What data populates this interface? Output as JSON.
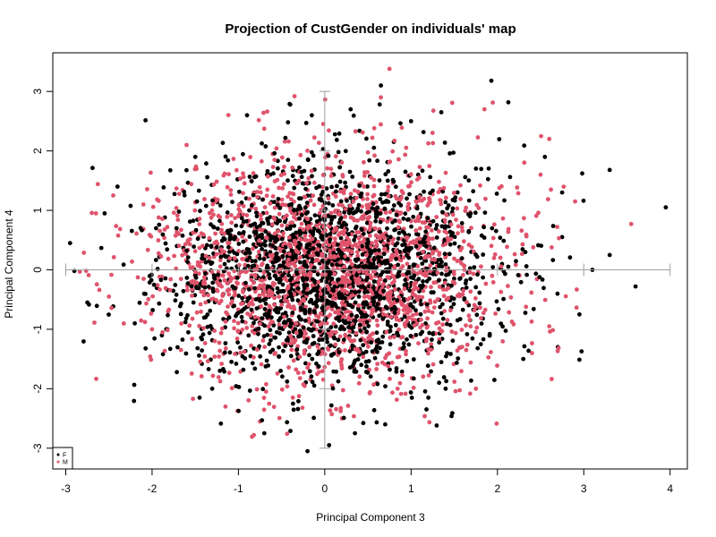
{
  "chart_data": {
    "type": "scatter",
    "title": "Projection of CustGender on individuals' map",
    "xlabel": "Principal Component 3",
    "ylabel": "Principal Component 4",
    "xlim": [
      -3.15,
      4.2
    ],
    "ylim": [
      -3.35,
      3.65
    ],
    "xticks": [
      -3,
      -2,
      -1,
      0,
      1,
      2,
      3,
      4
    ],
    "yticks": [
      -3,
      -2,
      -1,
      0,
      1,
      2,
      3
    ],
    "xtick_labels": [
      "-3",
      "-2",
      "-1",
      "0",
      "1",
      "2",
      "3",
      "4"
    ],
    "ytick_labels": [
      "-3",
      "-2",
      "-1",
      "0",
      "1",
      "2",
      "3"
    ],
    "grid": false,
    "legend_position": "bottom-left",
    "reference_axes": {
      "x": [
        -3,
        4
      ],
      "y": [
        -3,
        3
      ],
      "color": "#a0a0a0"
    },
    "series": [
      {
        "name": "F",
        "color": "#000000",
        "points": [
          [
            3.95,
            1.05
          ],
          [
            3.3,
            1.68
          ],
          [
            3.6,
            -0.28
          ],
          [
            3.3,
            0.25
          ],
          [
            3.1,
            0.0
          ],
          [
            1.93,
            3.18
          ],
          [
            0.65,
            3.1
          ],
          [
            -0.4,
            2.78
          ],
          [
            0.8,
            2.15
          ],
          [
            1.35,
            2.65
          ],
          [
            -2.95,
            0.45
          ],
          [
            -2.75,
            -0.55
          ],
          [
            -2.9,
            -0.02
          ],
          [
            -0.2,
            -3.05
          ],
          [
            0.05,
            -2.95
          ],
          [
            -0.7,
            -2.75
          ],
          [
            0.35,
            -2.75
          ],
          [
            2.7,
            -1.3
          ],
          [
            2.75,
            0.55
          ],
          [
            2.75,
            1.3
          ],
          [
            2.55,
            1.9
          ],
          [
            -1.5,
            1.9
          ],
          [
            -0.9,
            2.6
          ],
          [
            0.3,
            2.7
          ],
          [
            1.0,
            2.5
          ],
          [
            -0.15,
            2.6
          ],
          [
            1.2,
            -2.15
          ],
          [
            1.4,
            -2.0
          ],
          [
            -1.45,
            -2.15
          ],
          [
            -2.4,
            1.4
          ],
          [
            -2.2,
            -0.9
          ],
          [
            2.95,
            -0.75
          ],
          [
            2.3,
            -1.5
          ],
          [
            -2.55,
            0.95
          ],
          [
            0.7,
            -2.6
          ]
        ],
        "core_spread": [
          1.05,
          0.95
        ],
        "core_count": 1900,
        "seed": 7
      },
      {
        "name": "M",
        "color": "#df536b",
        "points": [
          [
            0.75,
            3.38
          ],
          [
            3.55,
            0.77
          ],
          [
            2.6,
            2.2
          ],
          [
            1.85,
            2.7
          ],
          [
            -0.35,
            2.92
          ],
          [
            -2.65,
            0.95
          ],
          [
            -2.45,
            1.25
          ],
          [
            -2.5,
            -0.45
          ],
          [
            2.5,
            1.6
          ],
          [
            0.65,
            2.9
          ],
          [
            -1.6,
            2.1
          ],
          [
            1.75,
            -2.0
          ],
          [
            -0.75,
            -2.55
          ],
          [
            -1.15,
            -2.3
          ],
          [
            0.2,
            -2.5
          ],
          [
            2.4,
            -1.4
          ],
          [
            -2.0,
            -1.0
          ],
          [
            -2.1,
            1.1
          ],
          [
            2.6,
            -0.95
          ],
          [
            2.9,
            1.15
          ]
        ],
        "core_spread": [
          1.08,
          0.98
        ],
        "core_count": 1900,
        "seed": 23
      }
    ]
  }
}
